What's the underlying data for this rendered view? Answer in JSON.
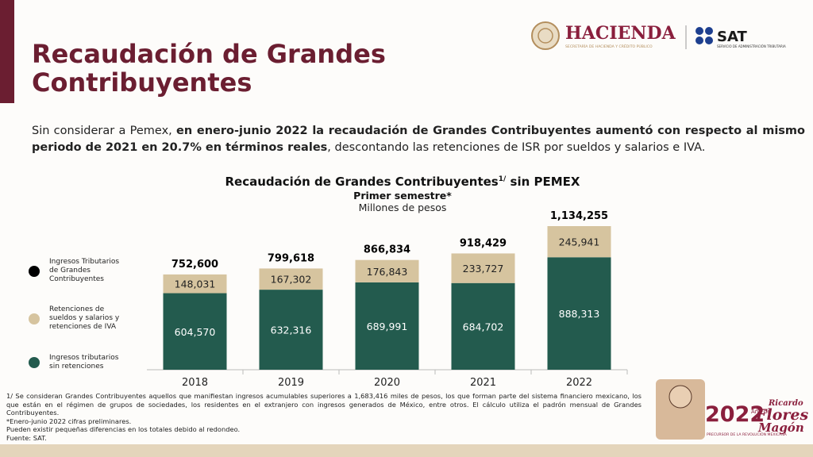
{
  "header": {
    "title": "Recaudación de Grandes Contribuyentes",
    "logo_hacienda": "HACIENDA",
    "logo_hacienda_sub": "SECRETARÍA DE HACIENDA Y CRÉDITO PÚBLICO",
    "logo_sat": "SAT",
    "logo_sat_sub": "SERVICIO DE ADMINISTRACIÓN TRIBUTARIA"
  },
  "intro": {
    "parts": [
      {
        "text": "Sin considerar a Pemex, ",
        "bold": false
      },
      {
        "text": "en enero-junio 2022 la recaudación de Grandes Contribuyentes aumentó con respecto al mismo periodo de 2021 en 20.7% en términos reales",
        "bold": true
      },
      {
        "text": ", descontando las retenciones de ISR por sueldos y salarios e IVA.",
        "bold": false
      }
    ]
  },
  "chart_data": {
    "type": "stacked_bar",
    "title": "Recaudación de Grandes Contribuyentes",
    "title_note": "1/",
    "title_end": " sin PEMEX",
    "subtitle": "Primer semestre*",
    "unit": "Millones de pesos",
    "categories": [
      "2018",
      "2019",
      "2020",
      "2021",
      "2022"
    ],
    "series": [
      {
        "name": "Ingresos tributarios sin retenciones",
        "color": "#235b4e",
        "values": [
          604570,
          632316,
          689991,
          684702,
          888313
        ],
        "value_labels": [
          "604,570",
          "632,316",
          "689,991",
          "684,702",
          "888,313"
        ]
      },
      {
        "name": "Retenciones de sueldos y salarios y retenciones de IVA",
        "color": "#d6c49f",
        "values": [
          148031,
          167302,
          176843,
          233727,
          245941
        ],
        "value_labels": [
          "148,031",
          "167,302",
          "176,843",
          "233,727",
          "245,941"
        ]
      }
    ],
    "totals": {
      "name": "Ingresos Tributarios de Grandes Contribuyentes",
      "color": "#000000",
      "values": [
        752600,
        799618,
        866834,
        918429,
        1134255
      ],
      "value_labels": [
        "752,600",
        "799,618",
        "866,834",
        "918,429",
        "1,134,255"
      ]
    }
  },
  "footnotes": [
    "1/ Se consideran Grandes Contribuyentes aquellos que manifiestan ingresos acumulables superiores a 1,683,416 miles de pesos, los que forman parte del sistema financiero mexicano, los que están en el régimen de grupos de sociedades, los residentes en el extranjero con ingresos generados de México, entre otros. El cálculo utiliza el padrón mensual de Grandes Contribuyentes.",
    "*Enero-junio 2022 cifras preliminares.",
    "Pueden existir pequeñas diferencias en los totales debido al redondeo.",
    "Fuente: SAT."
  ],
  "badge": {
    "year": "2022",
    "year_of": "Año de",
    "first_name": "Ricardo",
    "surname_1": "Flores",
    "surname_2": "Magón",
    "caption": "PRECURSOR DE LA REVOLUCIÓN MEXICANA"
  }
}
